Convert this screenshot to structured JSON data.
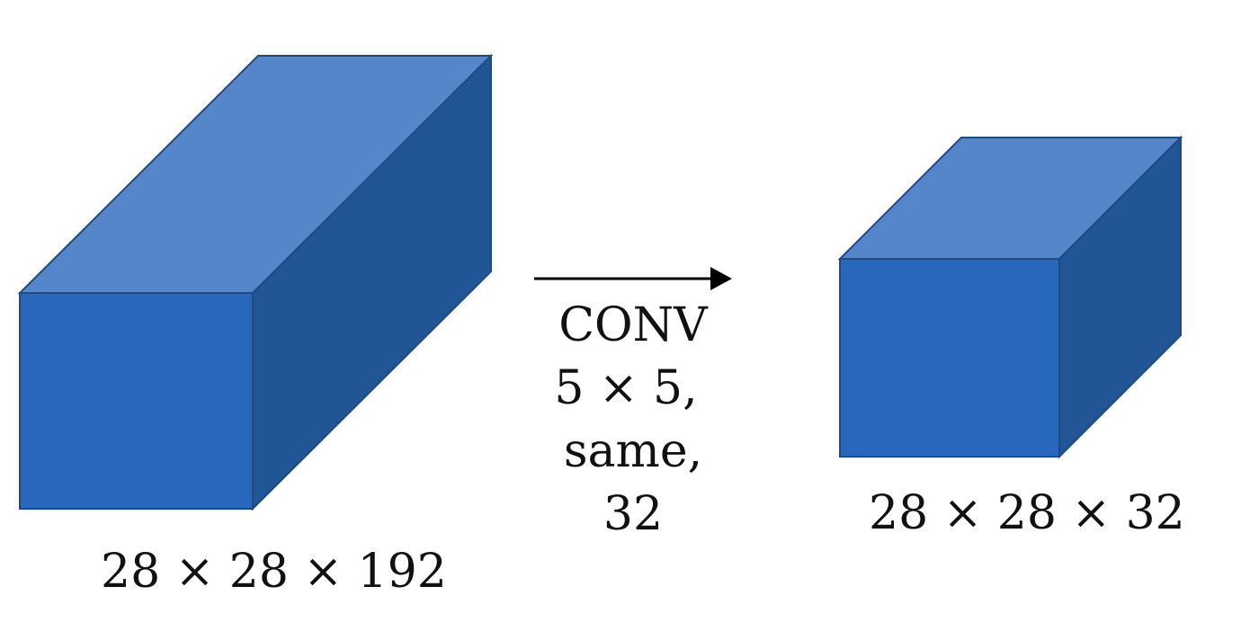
{
  "input_volume": {
    "label": "28 × 28 × 192",
    "colors": {
      "front": "#2768bd",
      "top": "#5586ca",
      "side": "#225596",
      "edge": "#1e4a86"
    }
  },
  "operation": {
    "lines": [
      "CONV",
      "5 × 5,",
      "same,",
      "32"
    ],
    "arrow_color": "#000000"
  },
  "output_volume": {
    "label": "28 × 28 × 32",
    "colors": {
      "front": "#2768bd",
      "top": "#5586ca",
      "side": "#225596",
      "edge": "#1e4a86"
    }
  }
}
